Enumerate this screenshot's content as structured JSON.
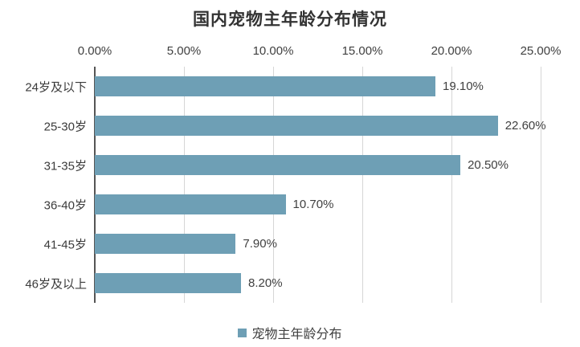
{
  "chart_data": {
    "type": "bar",
    "orientation": "horizontal",
    "title": "国内宠物主年龄分布情况",
    "categories": [
      "24岁及以下",
      "25-30岁",
      "31-35岁",
      "36-40岁",
      "41-45岁",
      "46岁及以上"
    ],
    "values": [
      19.1,
      22.6,
      20.5,
      10.7,
      7.9,
      8.2
    ],
    "value_labels": [
      "19.10%",
      "22.60%",
      "20.50%",
      "10.70%",
      "7.90%",
      "8.20%"
    ],
    "x_ticks": [
      "0.00%",
      "5.00%",
      "10.00%",
      "15.00%",
      "20.00%",
      "25.00%"
    ],
    "x_tick_values": [
      0,
      5,
      10,
      15,
      20,
      25
    ],
    "xlim": [
      0,
      25
    ],
    "xlabel": "",
    "ylabel": "",
    "grid": "vertical",
    "legend_position": "bottom",
    "legend": [
      {
        "label": "宠物主年龄分布",
        "color": "#6e9fb5"
      }
    ],
    "colors": {
      "bar": "#6e9fb5",
      "gridline": "#d6d6d6",
      "axis_line": "#555555",
      "text": "#404040",
      "title": "#333333"
    }
  }
}
